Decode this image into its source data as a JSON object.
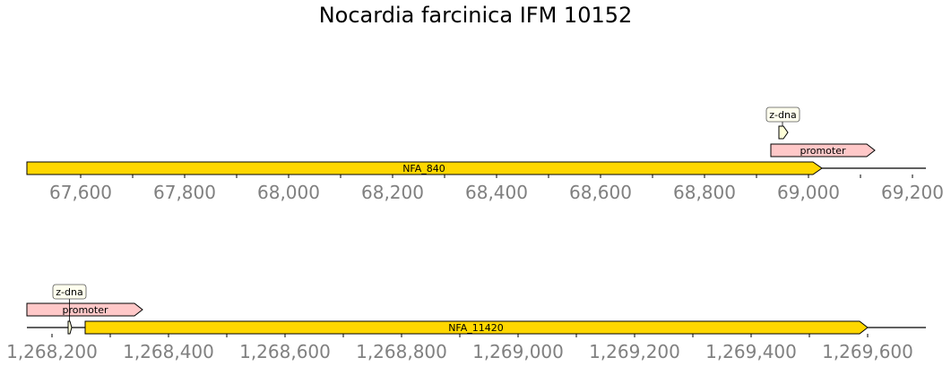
{
  "title": "Nocardia farcinica IFM 10152",
  "colors": {
    "gene": "#ffd700",
    "promoter": "#ffc8c8",
    "zdna": "#ffffd8",
    "callout_bg": "#ffffee",
    "outline": "#000000",
    "axis_text": "#808080"
  },
  "tracks": [
    {
      "ticks": [
        "67,600",
        "67,800",
        "68,000",
        "68,200",
        "68,400",
        "68,600",
        "68,800",
        "69,000",
        "69,200"
      ],
      "features": [
        {
          "type": "gene",
          "label": "NFA_840",
          "strand": "+"
        },
        {
          "type": "promoter",
          "label": "promoter",
          "strand": "+"
        },
        {
          "type": "z-dna",
          "label": "z-dna",
          "strand": "+"
        }
      ]
    },
    {
      "ticks": [
        "1,268,200",
        "1,268,400",
        "1,268,600",
        "1,268,800",
        "1,269,000",
        "1,269,200",
        "1,269,400",
        "1,269,600"
      ],
      "features": [
        {
          "type": "promoter",
          "label": "promoter",
          "strand": "+"
        },
        {
          "type": "z-dna",
          "label": "z-dna",
          "strand": "+"
        },
        {
          "type": "gene",
          "label": "NFA_11420",
          "strand": "+"
        }
      ]
    }
  ]
}
